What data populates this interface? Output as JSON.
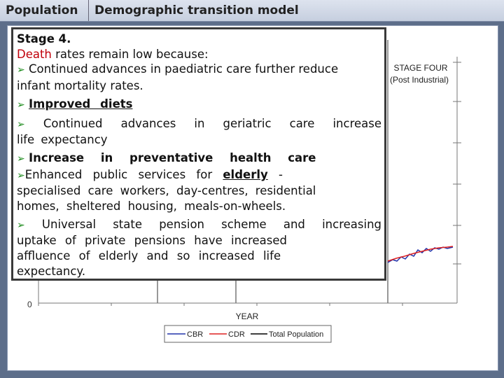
{
  "header": {
    "tab1": "Population",
    "tab2": "Demographic transition model"
  },
  "textbox": {
    "stage": "Stage 4.",
    "death_word": "Death",
    "death_rest": " rates remain low because:",
    "b1": "Continued advances in paediatric care further reduce",
    "b1b": "infant mortality rates.",
    "b2": "Improved diets",
    "b3a": "Continued advances in geriatric care increase",
    "b3b": "life expectancy",
    "b4": "Increase in preventative health care",
    "b5a_pre": "Enhanced public services for",
    "b5a_u": "elderly",
    "b5a_post": "-",
    "b5b": "specialised care workers, day-centres, residential",
    "b5c": "homes, sheltered housing, meals-on-wheels.",
    "b6a": "Universal state pension scheme and increasing",
    "b6b": "uptake of private pensions have increased",
    "b6c": "affluence of elderly and so increased life",
    "b6d": "expectancy."
  },
  "chart_data": {
    "type": "line",
    "stage_label_1": "STAGE FOUR",
    "stage_label_2": "(Post Industrial)",
    "y_tick": "0",
    "xlabel": "YEAR",
    "legend": [
      "CBR",
      "CDR",
      "Total Population"
    ],
    "colors": {
      "CBR": "#2233aa",
      "CDR": "#dd2222",
      "Total Population": "#000000"
    }
  }
}
